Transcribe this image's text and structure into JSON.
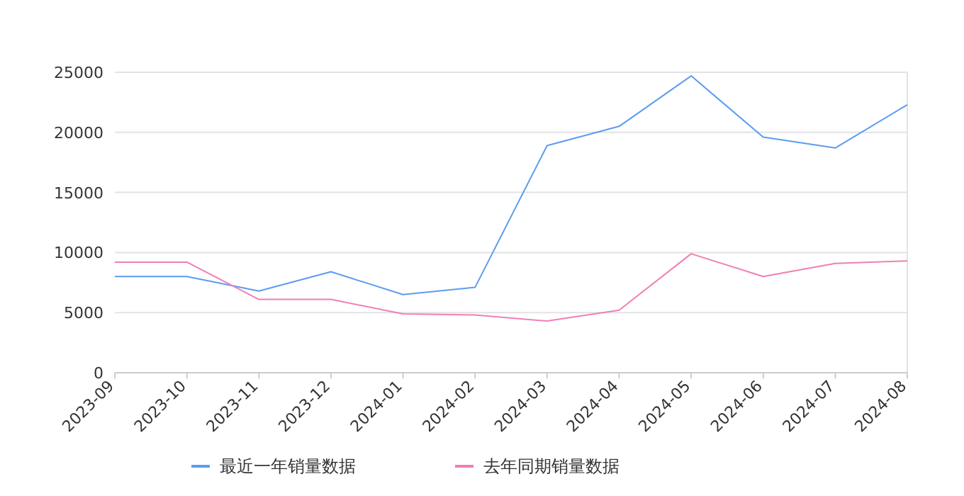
{
  "chart_data": {
    "type": "line",
    "x": [
      "2023-09",
      "2023-10",
      "2023-11",
      "2023-12",
      "2024-01",
      "2024-02",
      "2024-03",
      "2024-04",
      "2024-05",
      "2024-06",
      "2024-07",
      "2024-08"
    ],
    "xticks": [
      {
        "value": "2023-09",
        "label": "2023-09"
      },
      {
        "value": "2023-10",
        "label": "2023-10"
      },
      {
        "value": "2023-11",
        "label": "2023-11"
      },
      {
        "value": "2023-12",
        "label": "2023-12"
      },
      {
        "value": "2024-01",
        "label": "2024-01"
      },
      {
        "value": "2024-02",
        "label": "2024-02"
      },
      {
        "value": "2024-03",
        "label": "2024-03"
      },
      {
        "value": "2024-04",
        "label": "2024-04"
      },
      {
        "value": "2024-05",
        "label": "2024-05"
      },
      {
        "value": "2024-06",
        "label": "2024-06"
      },
      {
        "value": "2024-07",
        "label": "2024-07"
      },
      {
        "value": "2024-08",
        "label": "2024-08"
      }
    ],
    "xlim": [
      "2023-09",
      "2024-08"
    ],
    "ylim": [
      0,
      25000
    ],
    "yticks": [
      0,
      5000,
      10000,
      15000,
      20000,
      25000
    ],
    "grid": "y",
    "legend": "bottom",
    "series": [
      {
        "name": "最近一年销量数据",
        "color": "#5b9cf0",
        "values": [
          8000,
          8000,
          6800,
          8400,
          6500,
          7100,
          18900,
          20500,
          24700,
          19600,
          18700,
          22300
        ]
      },
      {
        "name": "去年同期销量数据",
        "color": "#f07fb5",
        "values": [
          9200,
          9200,
          6100,
          6100,
          4900,
          4800,
          4300,
          5200,
          9900,
          8000,
          9100,
          9300
        ]
      }
    ]
  }
}
